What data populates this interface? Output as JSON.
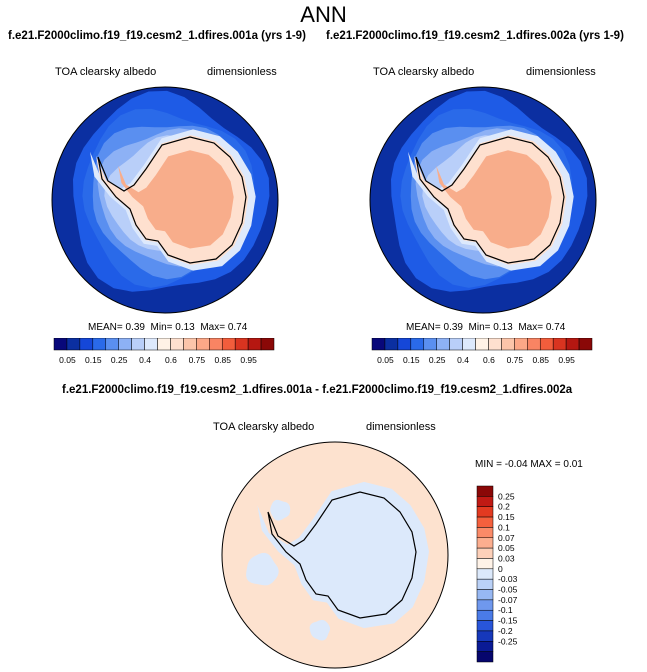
{
  "page": {
    "title": "ANN"
  },
  "colors": {
    "land_fill": "#f8ad8b",
    "coast": "#000000",
    "background": "#ffffff",
    "abs_colorbar": [
      "#08087a",
      "#0b2fa1",
      "#1547d8",
      "#2a6ae9",
      "#5a8ff0",
      "#8db1f5",
      "#b9cff9",
      "#dde9fc",
      "#fff2e6",
      "#fee0cf",
      "#fcc5aa",
      "#fca787",
      "#f98463",
      "#f25d3c",
      "#d93420",
      "#b51711",
      "#8a0807"
    ],
    "diff_colorbar": [
      "#8a0807",
      "#c01a14",
      "#e23a21",
      "#f4603d",
      "#fa8a68",
      "#fcae8f",
      "#fdd0b9",
      "#fff3e8",
      "#dce9fb",
      "#bad1f7",
      "#97b8f3",
      "#6f98ee",
      "#4a7be8",
      "#2855d9",
      "#1638bb",
      "#0a1a95",
      "#06066d"
    ],
    "diff_land": "#dce9fb",
    "diff_ocean": "#fde2cf"
  },
  "chart_data": [
    {
      "type": "heatmap",
      "projection": "polar-stereographic-south",
      "title": "f.e21.F2000climo.f19_f19.cesm2_1.dfires.001a (yrs 1-9)",
      "variable": "TOA clearsky albedo",
      "units": "dimensionless",
      "stats": {
        "mean_label": "MEAN=",
        "mean": "0.39",
        "min_label": "Min=",
        "min": "0.13",
        "max_label": "Max=",
        "max": "0.74"
      },
      "colorbar_labels": [
        "0.05",
        "0.15",
        "0.25",
        "0.4",
        "0.6",
        "0.75",
        "0.85",
        "0.95"
      ],
      "zones": [
        {
          "level": 0.17,
          "color": "#1e5be6"
        },
        {
          "level": 0.21,
          "color": "#2a6ae9"
        },
        {
          "level": 0.27,
          "color": "#5a8ff0"
        },
        {
          "level": 0.33,
          "color": "#8db1f5"
        },
        {
          "level": 0.45,
          "color": "#b9cff9"
        },
        {
          "level": 0.55,
          "color": "#dde9fc"
        },
        {
          "level": 0.62,
          "color": "#fee0cf"
        },
        {
          "level": 0.74,
          "color": "#f8ad8b"
        }
      ]
    },
    {
      "type": "heatmap",
      "projection": "polar-stereographic-south",
      "title": "f.e21.F2000climo.f19_f19.cesm2_1.dfires.002a (yrs 1-9)",
      "variable": "TOA clearsky albedo",
      "units": "dimensionless",
      "stats": {
        "mean_label": "MEAN=",
        "mean": "0.39",
        "min_label": "Min=",
        "min": "0.13",
        "max_label": "Max=",
        "max": "0.74"
      },
      "colorbar_labels": [
        "0.05",
        "0.15",
        "0.25",
        "0.4",
        "0.6",
        "0.75",
        "0.85",
        "0.95"
      ],
      "zones": [
        {
          "level": 0.17,
          "color": "#1e5be6"
        },
        {
          "level": 0.21,
          "color": "#2a6ae9"
        },
        {
          "level": 0.27,
          "color": "#5a8ff0"
        },
        {
          "level": 0.33,
          "color": "#8db1f5"
        },
        {
          "level": 0.45,
          "color": "#b9cff9"
        },
        {
          "level": 0.55,
          "color": "#dde9fc"
        },
        {
          "level": 0.62,
          "color": "#fee0cf"
        },
        {
          "level": 0.74,
          "color": "#f8ad8b"
        }
      ]
    },
    {
      "type": "heatmap",
      "projection": "polar-stereographic-south",
      "title": "f.e21.F2000climo.f19_f19.cesm2_1.dfires.001a - f.e21.F2000climo.f19_f19.cesm2_1.dfires.002a",
      "variable": "TOA clearsky albedo",
      "units": "dimensionless",
      "stats": {
        "min_label": "MIN =",
        "min": "-0.04",
        "max_label": "MAX =",
        "max": "0.01"
      },
      "colorbar_labels": [
        "0.25",
        "0.2",
        "0.15",
        "0.1",
        "0.07",
        "0.05",
        "0.03",
        "0",
        "-0.03",
        "-0.05",
        "-0.07",
        "-0.1",
        "-0.15",
        "-0.2",
        "-0.25"
      ],
      "colorbar_orientation": "vertical"
    }
  ]
}
